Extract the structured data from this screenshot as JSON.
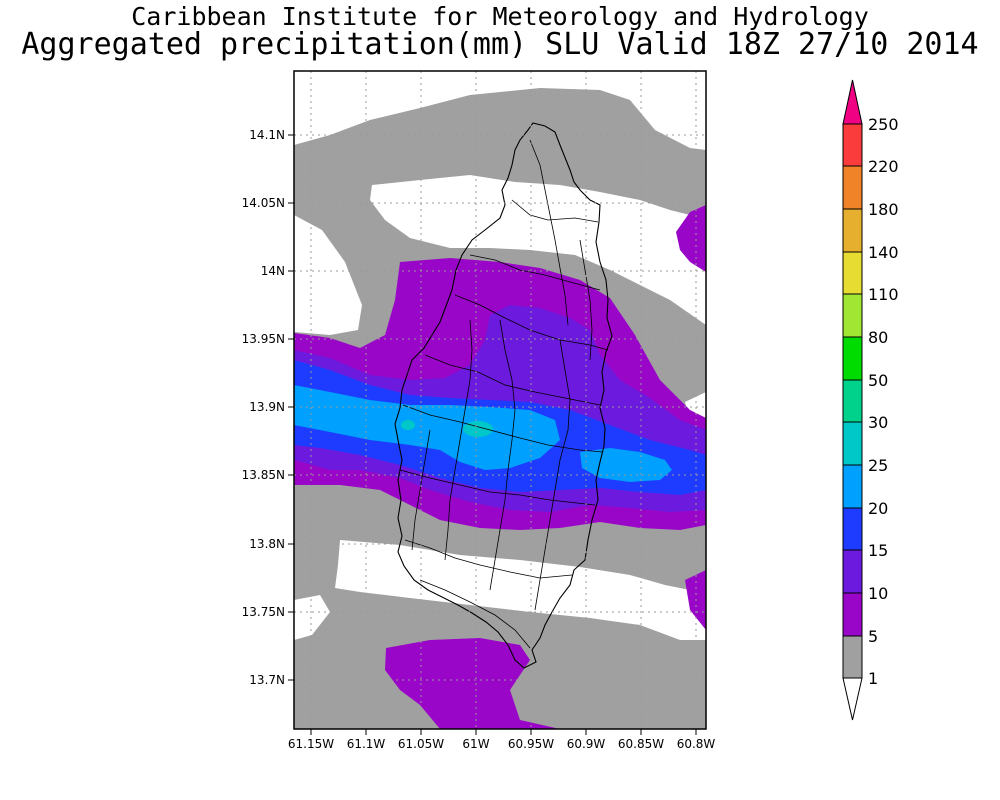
{
  "title_line1": "Caribbean Institute for Meteorology and Hydrology",
  "title_line2": "Aggregated precipitation(mm) SLU Valid 18Z 27/10 2014",
  "map": {
    "lat_ticks": [
      "14.1N",
      "14.05N",
      "14N",
      "13.95N",
      "13.9N",
      "13.85N",
      "13.8N",
      "13.75N",
      "13.7N"
    ],
    "lon_ticks": [
      "61.15W",
      "61.1W",
      "61.05W",
      "61W",
      "60.95W",
      "60.9W",
      "60.85W",
      "60.8W"
    ],
    "lat_range": [
      13.664,
      14.146
    ],
    "lon_range": [
      -61.162,
      -60.787
    ],
    "gridlines": true
  },
  "colorbar": {
    "labels": [
      "1",
      "5",
      "10",
      "15",
      "20",
      "25",
      "30",
      "50",
      "80",
      "110",
      "140",
      "180",
      "220",
      "250"
    ],
    "colors": [
      "#ffffff",
      "#a0a0a0",
      "#9a06c8",
      "#6c1ade",
      "#1e3cff",
      "#00a0ff",
      "#00c8c8",
      "#00d28c",
      "#00dc00",
      "#a0e632",
      "#e6dc32",
      "#e6af2d",
      "#f08228",
      "#fa3c3c",
      "#f00082"
    ]
  }
}
